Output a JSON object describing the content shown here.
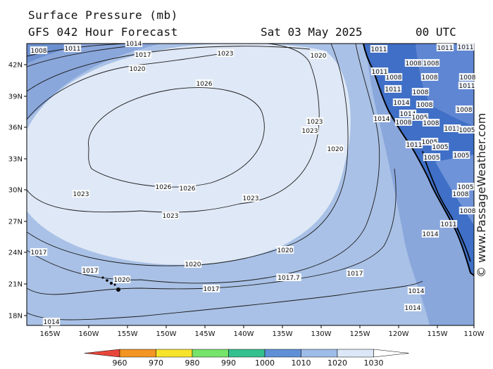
{
  "header": {
    "line1": "Surface Pressure (mb)",
    "line2": "GFS 042 Hour Forecast",
    "date": "Sat 03 May 2025",
    "utc": "00 UTC"
  },
  "watermark": "© www.PassageWeather.com",
  "colors": {
    "ocean_low": "#6c8fcf",
    "band_1010_1020": "#a9c1e6",
    "band_1020_1030": "#dfe8f6",
    "land": "#3f6fc6",
    "coast": "#000000"
  },
  "axes": {
    "lat_labels": [
      "42N",
      "39N",
      "36N",
      "33N",
      "30N",
      "27N",
      "24N",
      "21N",
      "18N"
    ],
    "lon_labels": [
      "165W",
      "160W",
      "155W",
      "150W",
      "145W",
      "140W",
      "135W",
      "130W",
      "125W",
      "120W",
      "115W",
      "110W"
    ]
  },
  "isobars": [
    {
      "value": "1008",
      "pos": [
        55,
        72
      ]
    },
    {
      "value": "1011",
      "pos": [
        103,
        69
      ]
    },
    {
      "value": "1014",
      "pos": [
        190,
        62
      ]
    },
    {
      "value": "1017",
      "pos": [
        203,
        78
      ]
    },
    {
      "value": "1020",
      "pos": [
        195,
        98
      ]
    },
    {
      "value": "1023",
      "pos": [
        320,
        76
      ]
    },
    {
      "value": "1020",
      "pos": [
        452,
        79
      ]
    },
    {
      "value": "1026",
      "pos": [
        290,
        119
      ]
    },
    {
      "value": "1023",
      "pos": [
        447,
        173
      ]
    },
    {
      "value": "1023",
      "pos": [
        440,
        186
      ]
    },
    {
      "value": "1020",
      "pos": [
        476,
        212
      ]
    },
    {
      "value": "1026",
      "pos": [
        232,
        266
      ]
    },
    {
      "value": "1026",
      "pos": [
        266,
        268
      ]
    },
    {
      "value": "1023",
      "pos": [
        115,
        276
      ]
    },
    {
      "value": "1023",
      "pos": [
        356,
        282
      ]
    },
    {
      "value": "1023",
      "pos": [
        242,
        307
      ]
    },
    {
      "value": "1020",
      "pos": [
        405,
        356
      ]
    },
    {
      "value": "1020",
      "pos": [
        274,
        376
      ]
    },
    {
      "value": "1017",
      "pos": [
        55,
        359
      ]
    },
    {
      "value": "1017",
      "pos": [
        128,
        385
      ]
    },
    {
      "value": "1017",
      "pos": [
        504,
        389
      ]
    },
    {
      "value": "1020",
      "pos": [
        173,
        398
      ]
    },
    {
      "value": "1017.7",
      "pos": [
        410,
        395
      ]
    },
    {
      "value": "1017",
      "pos": [
        300,
        411
      ]
    },
    {
      "value": "1014",
      "pos": [
        591,
        414
      ]
    },
    {
      "value": "1014",
      "pos": [
        586,
        438
      ]
    },
    {
      "value": "1014",
      "pos": [
        73,
        458
      ]
    },
    {
      "value": "1014",
      "pos": [
        611,
        333
      ]
    },
    {
      "value": "1011",
      "pos": [
        637,
        319
      ]
    },
    {
      "value": "1014",
      "pos": [
        542,
        169
      ]
    },
    {
      "value": "1011",
      "pos": [
        538,
        70
      ]
    },
    {
      "value": "1008",
      "pos": [
        587,
        90
      ]
    },
    {
      "value": "1011",
      "pos": [
        632,
        68
      ]
    },
    {
      "value": "1008",
      "pos": [
        559,
        110
      ]
    },
    {
      "value": "1011",
      "pos": [
        539,
        102
      ]
    },
    {
      "value": "1008",
      "pos": [
        610,
        110
      ]
    },
    {
      "value": "1008",
      "pos": [
        597,
        131
      ]
    },
    {
      "value": "1011",
      "pos": [
        558,
        127
      ]
    },
    {
      "value": "1014",
      "pos": [
        570,
        146
      ]
    },
    {
      "value": "1008",
      "pos": [
        603,
        149
      ]
    },
    {
      "value": "1014",
      "pos": [
        579,
        162
      ]
    },
    {
      "value": "1008",
      "pos": [
        573,
        174
      ]
    },
    {
      "value": "1005",
      "pos": [
        596,
        167
      ]
    },
    {
      "value": "1008",
      "pos": [
        612,
        175
      ]
    },
    {
      "value": "1011",
      "pos": [
        642,
        183
      ]
    },
    {
      "value": "1005",
      "pos": [
        663,
        185
      ]
    },
    {
      "value": "1011",
      "pos": [
        588,
        206
      ]
    },
    {
      "value": "1005",
      "pos": [
        610,
        202
      ]
    },
    {
      "value": "1005",
      "pos": [
        625,
        209
      ]
    },
    {
      "value": "1005",
      "pos": [
        613,
        224
      ]
    },
    {
      "value": "1008",
      "pos": [
        664,
        110
      ]
    },
    {
      "value": "1011",
      "pos": [
        663,
        122
      ]
    },
    {
      "value": "1008",
      "pos": [
        659,
        156
      ]
    },
    {
      "value": "1005",
      "pos": [
        655,
        221
      ]
    },
    {
      "value": "1005",
      "pos": [
        661,
        266
      ]
    },
    {
      "value": "1008",
      "pos": [
        654,
        276
      ]
    },
    {
      "value": "1008",
      "pos": [
        664,
        300
      ]
    },
    {
      "value": "1008",
      "pos": [
        612,
        90
      ]
    },
    {
      "value": "1011",
      "pos": [
        661,
        67
      ]
    }
  ],
  "colorbar": {
    "labels": [
      "960",
      "970",
      "980",
      "990",
      "1000",
      "1010",
      "1020",
      "1030"
    ],
    "colors": [
      "#e8463a",
      "#f39423",
      "#f7e32c",
      "#76e36a",
      "#35c08f",
      "#5f8fd6",
      "#9dbce8",
      "#dce8f8"
    ]
  }
}
